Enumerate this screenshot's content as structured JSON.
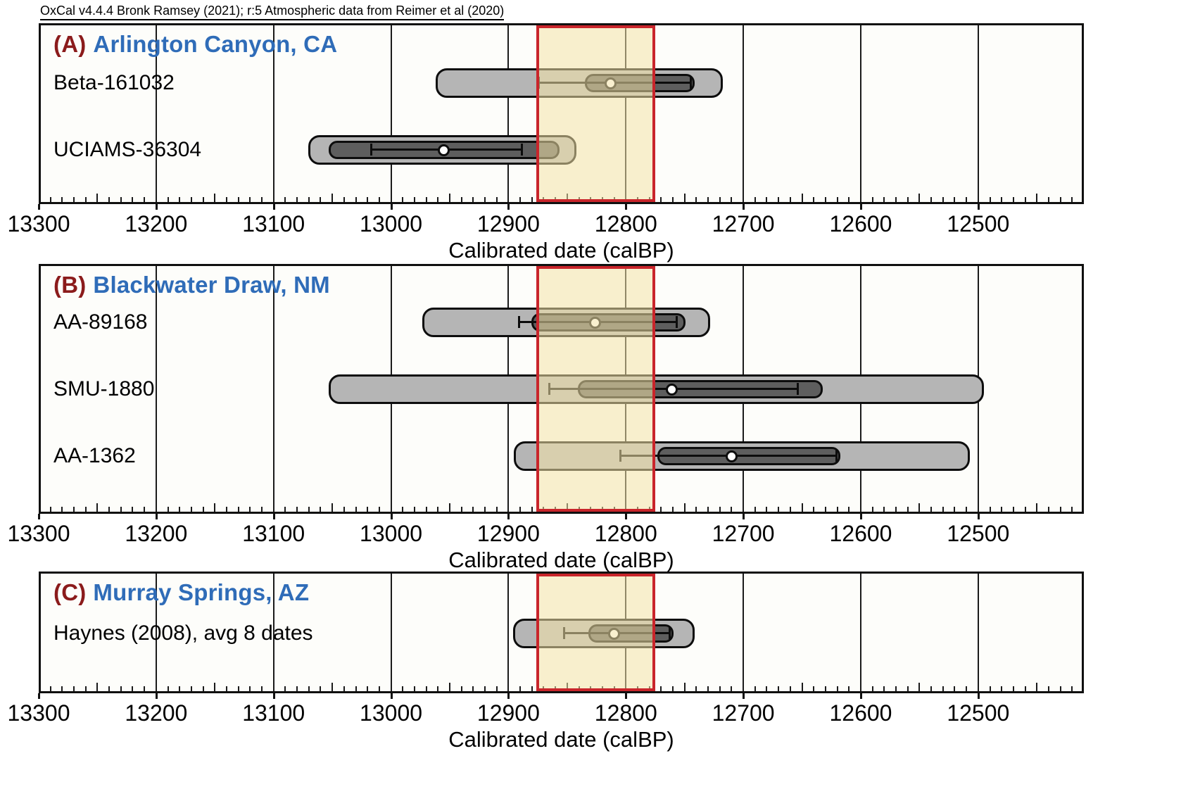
{
  "credit": "OxCal v4.4.4 Bronk Ramsey (2021); r:5 Atmospheric data from Reimer et al (2020)",
  "colors": {
    "panel_letter": "#8b1b1b",
    "site_name": "#2f6cb8",
    "bar_light": "#b5b5b5",
    "bar_dark": "#5e5e5e",
    "band_fill": "#f4e3a8",
    "band_border": "#c9252b",
    "grid": "#1a1a1a",
    "text": "#000000"
  },
  "axis": {
    "label": "Calibrated date (calBP)",
    "ticks": [
      13300,
      13200,
      13100,
      13000,
      12900,
      12800,
      12700,
      12600,
      12500
    ],
    "xlim": [
      13300,
      12410
    ],
    "minor_step": 10
  },
  "highlight_band": {
    "range": [
      12878,
      12777
    ]
  },
  "chart_data": [
    {
      "type": "bar",
      "panel": "(A)",
      "title": "Arlington Canyon, CA",
      "xlabel": "Calibrated date (calBP)",
      "xlim": [
        13300,
        12410
      ],
      "series": [
        {
          "name": "Beta-161032",
          "range_95_4": [
            12964,
            12719
          ],
          "range_68_3": [
            12837,
            12743
          ],
          "mean": 12815,
          "error_bar": [
            12876,
            12746
          ]
        },
        {
          "name": "UCIAMS-36304",
          "range_95_4": [
            13072,
            12844
          ],
          "range_68_3": [
            13055,
            12858
          ],
          "mean": 12957,
          "error_bar": [
            13019,
            12890
          ]
        }
      ]
    },
    {
      "type": "bar",
      "panel": "(B)",
      "title": "Blackwater Draw, NM",
      "xlabel": "Calibrated date (calBP)",
      "xlim": [
        13300,
        12410
      ],
      "series": [
        {
          "name": "AA-89168",
          "range_95_4": [
            12975,
            12730
          ],
          "range_68_3": [
            12882,
            12751
          ],
          "mean": 12828,
          "error_bar": [
            12893,
            12758
          ]
        },
        {
          "name": "SMU-1880",
          "range_95_4": [
            13055,
            12497
          ],
          "range_68_3": [
            12843,
            12634
          ],
          "mean": 12763,
          "error_bar": [
            12867,
            12655
          ]
        },
        {
          "name": "AA-1362",
          "range_95_4": [
            12897,
            12509
          ],
          "range_68_3": [
            12775,
            12619
          ],
          "mean": 12712,
          "error_bar": [
            12807,
            12622
          ]
        }
      ]
    },
    {
      "type": "bar",
      "panel": "(C)",
      "title": "Murray Springs, AZ",
      "xlabel": "Calibrated date (calBP)",
      "xlim": [
        13300,
        12410
      ],
      "series": [
        {
          "name": "Haynes (2008), avg 8 dates",
          "range_95_4": [
            12898,
            12743
          ],
          "range_68_3": [
            12834,
            12761
          ],
          "mean": 12812,
          "error_bar": [
            12855,
            12764
          ]
        }
      ]
    }
  ]
}
